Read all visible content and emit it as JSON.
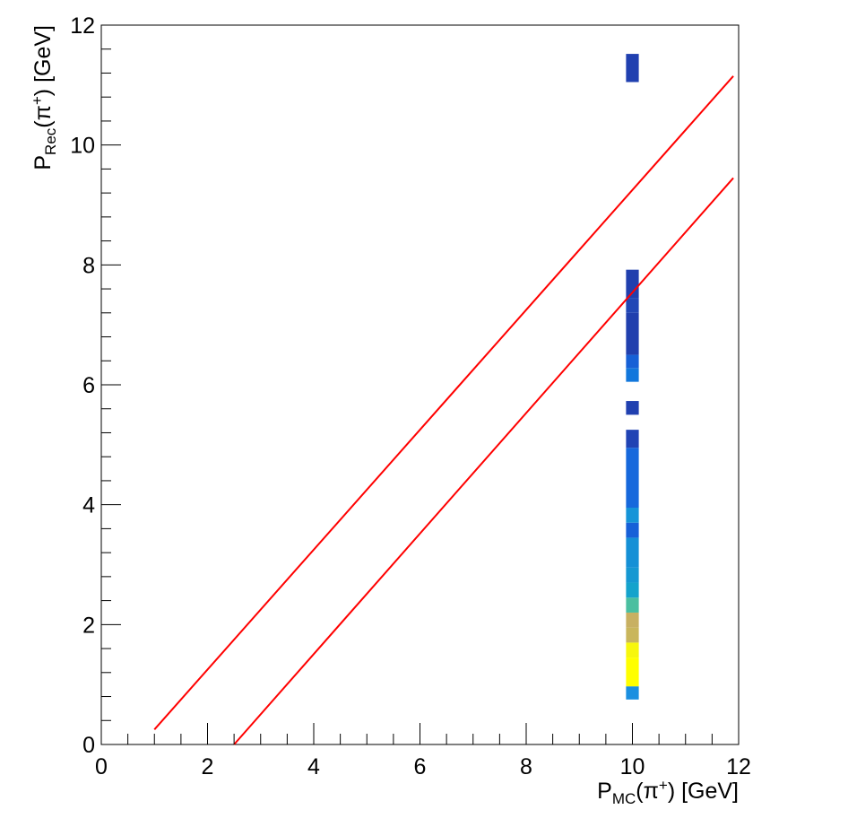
{
  "chart_data": {
    "type": "heatmap",
    "xlabel": {
      "base": "P",
      "sub": "MC",
      "particle": "(π",
      "sup": "+",
      "tail": ") [GeV]"
    },
    "ylabel": {
      "base": "P",
      "sub": "Rec",
      "particle": "(π",
      "sup": "+",
      "tail": ") [GeV]"
    },
    "xlim": [
      0,
      12
    ],
    "ylim": [
      0,
      12
    ],
    "x_ticks": [
      0,
      2,
      4,
      6,
      8,
      10,
      12
    ],
    "y_ticks": [
      0,
      2,
      4,
      6,
      8,
      10,
      12
    ],
    "grid": false,
    "legend": "none",
    "bin_x_range": [
      9.88,
      10.12
    ],
    "bins": [
      {
        "y0": 0.75,
        "y1": 0.97,
        "color": "#1a8fe0"
      },
      {
        "y0": 0.97,
        "y1": 1.45,
        "color": "#ffff00"
      },
      {
        "y0": 1.45,
        "y1": 1.7,
        "color": "#f7f70d"
      },
      {
        "y0": 1.7,
        "y1": 1.95,
        "color": "#c9b65c"
      },
      {
        "y0": 1.95,
        "y1": 2.2,
        "color": "#c8b062"
      },
      {
        "y0": 2.2,
        "y1": 2.45,
        "color": "#4abfa0"
      },
      {
        "y0": 2.45,
        "y1": 2.7,
        "color": "#14a3cc"
      },
      {
        "y0": 2.7,
        "y1": 2.95,
        "color": "#1598d2"
      },
      {
        "y0": 2.95,
        "y1": 3.45,
        "color": "#1490d6"
      },
      {
        "y0": 3.45,
        "y1": 3.7,
        "color": "#1660d8"
      },
      {
        "y0": 3.7,
        "y1": 3.95,
        "color": "#1594d8"
      },
      {
        "y0": 3.95,
        "y1": 4.95,
        "color": "#1668dc"
      },
      {
        "y0": 4.95,
        "y1": 5.25,
        "color": "#2043b4"
      },
      {
        "y0": 5.5,
        "y1": 5.73,
        "color": "#2040b0"
      },
      {
        "y0": 6.05,
        "y1": 6.28,
        "color": "#1277dc"
      },
      {
        "y0": 6.28,
        "y1": 6.5,
        "color": "#1660d6"
      },
      {
        "y0": 6.5,
        "y1": 7.2,
        "color": "#203fae"
      },
      {
        "y0": 7.2,
        "y1": 7.45,
        "color": "#2247b6"
      },
      {
        "y0": 7.45,
        "y1": 7.92,
        "color": "#203fae"
      },
      {
        "y0": 11.05,
        "y1": 11.52,
        "color": "#2040b0"
      }
    ],
    "lines": [
      {
        "color": "#ff0000",
        "points": [
          [
            1.0,
            0.25
          ],
          [
            11.9,
            11.15
          ]
        ]
      },
      {
        "color": "#ff0000",
        "points": [
          [
            2.5,
            0.0
          ],
          [
            11.9,
            9.45
          ]
        ]
      }
    ]
  }
}
